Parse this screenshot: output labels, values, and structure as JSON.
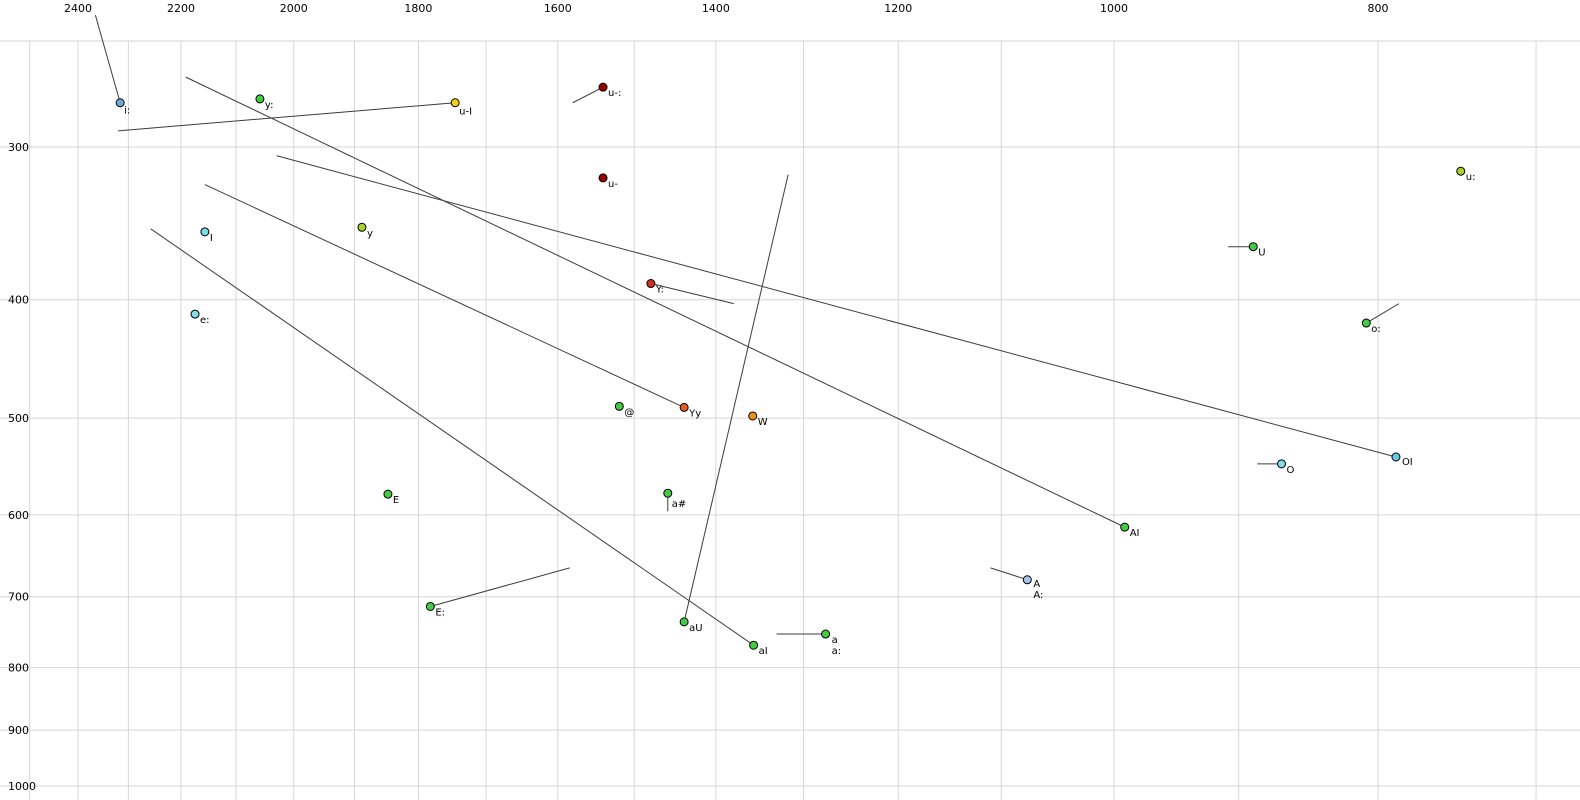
{
  "chart_data": {
    "type": "scatter",
    "title": "",
    "xlabel": "",
    "ylabel": "",
    "grid": true,
    "grid_color": "#d6d6d6",
    "segment_color": "#3c3c3c",
    "x_axis": {
      "position": "top",
      "scale": "log",
      "reversed": true,
      "range": [
        2530,
        680
      ],
      "ticks": [
        2400,
        2200,
        2000,
        1800,
        1600,
        1400,
        1200,
        1000,
        800
      ]
    },
    "y_axis": {
      "position": "left",
      "scale": "log",
      "reversed": false,
      "range": [
        245,
        1030
      ],
      "ticks": [
        300,
        400,
        500,
        600,
        700,
        800,
        900,
        1000
      ]
    },
    "points": [
      {
        "label": "i:",
        "f2": 2316,
        "f1": 276,
        "color": "#6fa8dc"
      },
      {
        "label": "y:",
        "f2": 2058,
        "f1": 274,
        "color": "#44cc44"
      },
      {
        "label": "u-I",
        "f2": 1745,
        "f1": 276,
        "color": "#f2d013"
      },
      {
        "label": "u-:",
        "f2": 1540,
        "f1": 268,
        "color": "#990000"
      },
      {
        "label": "u-",
        "f2": 1540,
        "f1": 318,
        "color": "#990000"
      },
      {
        "label": "y",
        "f2": 1888,
        "f1": 349,
        "color": "#a9d32c"
      },
      {
        "label": "I",
        "f2": 2156,
        "f1": 352,
        "color": "#7fdbe6"
      },
      {
        "label": "u:",
        "f2": 746,
        "f1": 314,
        "color": "#a9d32c"
      },
      {
        "label": "U",
        "f2": 889,
        "f1": 362,
        "color": "#44cc44"
      },
      {
        "label": "Y:",
        "f2": 1479,
        "f1": 388,
        "color": "#d03020"
      },
      {
        "label": "e:",
        "f2": 2174,
        "f1": 411,
        "color": "#7fdbe6"
      },
      {
        "label": "o:",
        "f2": 808,
        "f1": 418,
        "color": "#44cc44"
      },
      {
        "label": "@",
        "f2": 1519,
        "f1": 489,
        "color": "#44cc44"
      },
      {
        "label": "Yy",
        "f2": 1438,
        "f1": 490,
        "color": "#e85c1e"
      },
      {
        "label": "W",
        "f2": 1357,
        "f1": 498,
        "color": "#ef8e1b"
      },
      {
        "label": "O",
        "f2": 868,
        "f1": 545,
        "color": "#7fdbe6"
      },
      {
        "label": "OI",
        "f2": 788,
        "f1": 538,
        "color": "#66c6e6"
      },
      {
        "label": "E",
        "f2": 1847,
        "f1": 577,
        "color": "#44cc44"
      },
      {
        "label": "a#",
        "f2": 1458,
        "f1": 576,
        "color": "#44cc44"
      },
      {
        "label": "AI",
        "f2": 991,
        "f1": 614,
        "color": "#44cc44"
      },
      {
        "label": "A",
        "label2": "A:",
        "f2": 1076,
        "f1": 678,
        "color": "#a3c6e8"
      },
      {
        "label": "E:",
        "f2": 1782,
        "f1": 713,
        "color": "#44cc44"
      },
      {
        "label": "aU",
        "f2": 1438,
        "f1": 734,
        "color": "#44cc44"
      },
      {
        "label": "aI",
        "f2": 1356,
        "f1": 767,
        "color": "#44cc44"
      },
      {
        "label": "a",
        "label2": "a:",
        "f2": 1276,
        "f1": 751,
        "color": "#44cc44"
      }
    ],
    "segments": [
      {
        "from": [
          2365,
          234
        ],
        "to": [
          2316,
          276
        ]
      },
      {
        "from": [
          2320,
          291
        ],
        "to": [
          1745,
          276
        ]
      },
      {
        "from": [
          2156,
          322
        ],
        "to": [
          1438,
          490
        ]
      },
      {
        "from": [
          2029,
          305
        ],
        "to": [
          788,
          538
        ]
      },
      {
        "from": [
          2191,
          263
        ],
        "to": [
          991,
          614
        ]
      },
      {
        "from": [
          2257,
          350
        ],
        "to": [
          1356,
          767
        ]
      },
      {
        "from": [
          1317,
          316
        ],
        "to": [
          1438,
          734
        ]
      },
      {
        "from": [
          1580,
          276
        ],
        "to": [
          1540,
          268
        ]
      },
      {
        "from": [
          1479,
          388
        ],
        "to": [
          1379,
          403
        ]
      },
      {
        "from": [
          908,
          362
        ],
        "to": [
          889,
          362
        ]
      },
      {
        "from": [
          808,
          418
        ],
        "to": [
          786,
          403
        ]
      },
      {
        "from": [
          886,
          545
        ],
        "to": [
          868,
          545
        ]
      },
      {
        "from": [
          1110,
          663
        ],
        "to": [
          1076,
          678
        ]
      },
      {
        "from": [
          1330,
          751
        ],
        "to": [
          1276,
          751
        ]
      },
      {
        "from": [
          1584,
          663
        ],
        "to": [
          1782,
          713
        ]
      },
      {
        "from": [
          1458,
          578
        ],
        "to": [
          1458,
          596
        ]
      }
    ]
  }
}
